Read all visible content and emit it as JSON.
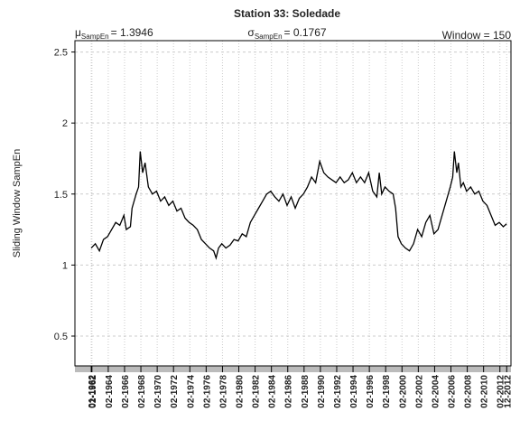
{
  "chart_data": {
    "type": "line",
    "title": "Station 33: Soledade",
    "y_label": "Sliding Window SampEn",
    "annotations": [
      {
        "symbol": "μ",
        "subscript": "SampEn",
        "text": "= 1.3946"
      },
      {
        "symbol": "σ",
        "subscript": "SampEn",
        "text": "= 0.1767"
      },
      {
        "text": "Window = 150"
      }
    ],
    "xlim": [
      1960.0,
      2013.44
    ],
    "ylim": [
      0.29,
      2.58
    ],
    "yticks": [
      0.5,
      1.0,
      1.5,
      2.0,
      2.5
    ],
    "xticks": [
      {
        "value": 1962.0,
        "label": "01-1962"
      },
      {
        "value": 1962.083,
        "label": "02-1962"
      },
      {
        "value": 1964.083,
        "label": "02-1964"
      },
      {
        "value": 1966.083,
        "label": "02-1966"
      },
      {
        "value": 1968.083,
        "label": "02-1968"
      },
      {
        "value": 1970.083,
        "label": "02-1970"
      },
      {
        "value": 1972.083,
        "label": "02-1972"
      },
      {
        "value": 1974.083,
        "label": "02-1974"
      },
      {
        "value": 1976.083,
        "label": "02-1976"
      },
      {
        "value": 1978.083,
        "label": "02-1978"
      },
      {
        "value": 1980.083,
        "label": "02-1980"
      },
      {
        "value": 1982.083,
        "label": "02-1982"
      },
      {
        "value": 1984.083,
        "label": "02-1984"
      },
      {
        "value": 1986.083,
        "label": "02-1986"
      },
      {
        "value": 1988.083,
        "label": "02-1988"
      },
      {
        "value": 1990.083,
        "label": "02-1990"
      },
      {
        "value": 1992.083,
        "label": "02-1992"
      },
      {
        "value": 1994.083,
        "label": "02-1994"
      },
      {
        "value": 1996.083,
        "label": "02-1996"
      },
      {
        "value": 1998.083,
        "label": "02-1998"
      },
      {
        "value": 2000.083,
        "label": "02-2000"
      },
      {
        "value": 2002.083,
        "label": "02-2002"
      },
      {
        "value": 2004.083,
        "label": "02-2004"
      },
      {
        "value": 2006.083,
        "label": "02-2006"
      },
      {
        "value": 2008.083,
        "label": "02-2008"
      },
      {
        "value": 2010.083,
        "label": "02-2010"
      },
      {
        "value": 2012.083,
        "label": "02-2012"
      },
      {
        "value": 2012.917,
        "label": "12-2012"
      }
    ],
    "grid": true,
    "x": [
      1962.0,
      1962.5,
      1963,
      1963.5,
      1964,
      1964.5,
      1965,
      1965.5,
      1966,
      1966.3,
      1966.8,
      1967,
      1967.5,
      1967.8,
      1968.0,
      1968.3,
      1968.6,
      1969,
      1969.5,
      1970,
      1970.5,
      1971,
      1971.5,
      1972,
      1972.5,
      1973,
      1973.5,
      1974,
      1974.5,
      1975,
      1975.5,
      1976,
      1976.5,
      1977,
      1977.3,
      1977.6,
      1978,
      1978.5,
      1979,
      1979.5,
      1980,
      1980.5,
      1981,
      1981.5,
      1982,
      1982.5,
      1983,
      1983.5,
      1984,
      1984.5,
      1985,
      1985.5,
      1986,
      1986.5,
      1987,
      1987.5,
      1988,
      1988.5,
      1989,
      1989.5,
      1990,
      1990.5,
      1991,
      1991.5,
      1992,
      1992.5,
      1993,
      1993.5,
      1994,
      1994.5,
      1995,
      1995.5,
      1996,
      1996.5,
      1997,
      1997.3,
      1997.6,
      1998,
      1998.5,
      1999,
      1999.3,
      1999.6,
      2000,
      2000.5,
      2001,
      2001.5,
      2002,
      2002.5,
      2003,
      2003.5,
      2004,
      2004.5,
      2005,
      2005.5,
      2006,
      2006.3,
      2006.5,
      2006.8,
      2007,
      2007.3,
      2007.6,
      2008,
      2008.5,
      2009,
      2009.5,
      2010,
      2010.5,
      2011,
      2011.5,
      2012,
      2012.5,
      2012.9
    ],
    "series": [
      {
        "color": "#000000",
        "values": [
          1.12,
          1.15,
          1.1,
          1.18,
          1.2,
          1.25,
          1.3,
          1.28,
          1.35,
          1.25,
          1.27,
          1.4,
          1.5,
          1.55,
          1.8,
          1.65,
          1.72,
          1.55,
          1.5,
          1.52,
          1.45,
          1.48,
          1.42,
          1.45,
          1.38,
          1.4,
          1.33,
          1.3,
          1.28,
          1.25,
          1.18,
          1.15,
          1.12,
          1.1,
          1.05,
          1.12,
          1.15,
          1.12,
          1.14,
          1.18,
          1.17,
          1.22,
          1.2,
          1.3,
          1.35,
          1.4,
          1.45,
          1.5,
          1.52,
          1.48,
          1.45,
          1.5,
          1.42,
          1.48,
          1.4,
          1.47,
          1.5,
          1.55,
          1.62,
          1.58,
          1.73,
          1.65,
          1.62,
          1.6,
          1.58,
          1.62,
          1.58,
          1.6,
          1.65,
          1.58,
          1.62,
          1.58,
          1.65,
          1.52,
          1.48,
          1.65,
          1.5,
          1.55,
          1.52,
          1.5,
          1.4,
          1.2,
          1.15,
          1.12,
          1.1,
          1.15,
          1.25,
          1.2,
          1.3,
          1.35,
          1.22,
          1.25,
          1.35,
          1.45,
          1.55,
          1.62,
          1.8,
          1.65,
          1.72,
          1.55,
          1.58,
          1.52,
          1.55,
          1.5,
          1.52,
          1.45,
          1.42,
          1.35,
          1.28,
          1.3,
          1.27,
          1.29
        ]
      }
    ]
  }
}
